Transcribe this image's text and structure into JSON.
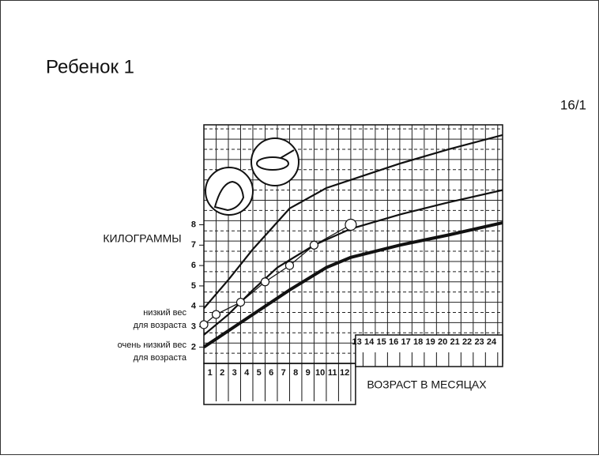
{
  "title": "Ребенок 1",
  "page_number": "16/1",
  "chart_data": {
    "type": "line",
    "y_label": "КИЛОГРАММЫ",
    "x_label": "ВОЗРАСТ В МЕСЯЦАХ",
    "low_weight_label": [
      "низкий вес",
      "для возраста"
    ],
    "very_low_weight_label": [
      "очень низкий вес",
      "для возраста"
    ],
    "xlim": [
      0,
      24.4
    ],
    "ylim": [
      1.2,
      12.9
    ],
    "xticks": [
      1,
      2,
      3,
      4,
      5,
      6,
      7,
      8,
      9,
      10,
      11,
      12,
      13,
      14,
      15,
      16,
      17,
      18,
      19,
      20,
      21,
      22,
      23,
      24
    ],
    "yticks": [
      2,
      3,
      4,
      5,
      6,
      7,
      8
    ],
    "series": [
      {
        "color": "#111111",
        "x": [
          0,
          2,
          4,
          7,
          10,
          12,
          16,
          20,
          24.4
        ],
        "values": [
          3.9,
          5.3,
          6.8,
          8.8,
          9.8,
          10.2,
          11.0,
          11.7,
          12.4
        ]
      },
      {
        "color": "#111111",
        "x": [
          0,
          2,
          4,
          6,
          9,
          12,
          16,
          20,
          24.4
        ],
        "values": [
          2.6,
          3.6,
          4.8,
          5.9,
          7.0,
          7.8,
          8.5,
          9.1,
          9.7
        ]
      },
      {
        "color": "#111111",
        "x": [
          0,
          1,
          3,
          5,
          7,
          10,
          12,
          16,
          20,
          24.4
        ],
        "values": [
          2.0,
          2.4,
          3.2,
          4.0,
          4.8,
          5.9,
          6.4,
          7.0,
          7.5,
          8.1
        ]
      },
      {
        "color": "#111111",
        "markers": true,
        "x": [
          0,
          1,
          3,
          5,
          7,
          9,
          12
        ],
        "values": [
          3.1,
          3.6,
          4.2,
          5.2,
          6.0,
          7.0,
          8.0
        ]
      }
    ]
  }
}
